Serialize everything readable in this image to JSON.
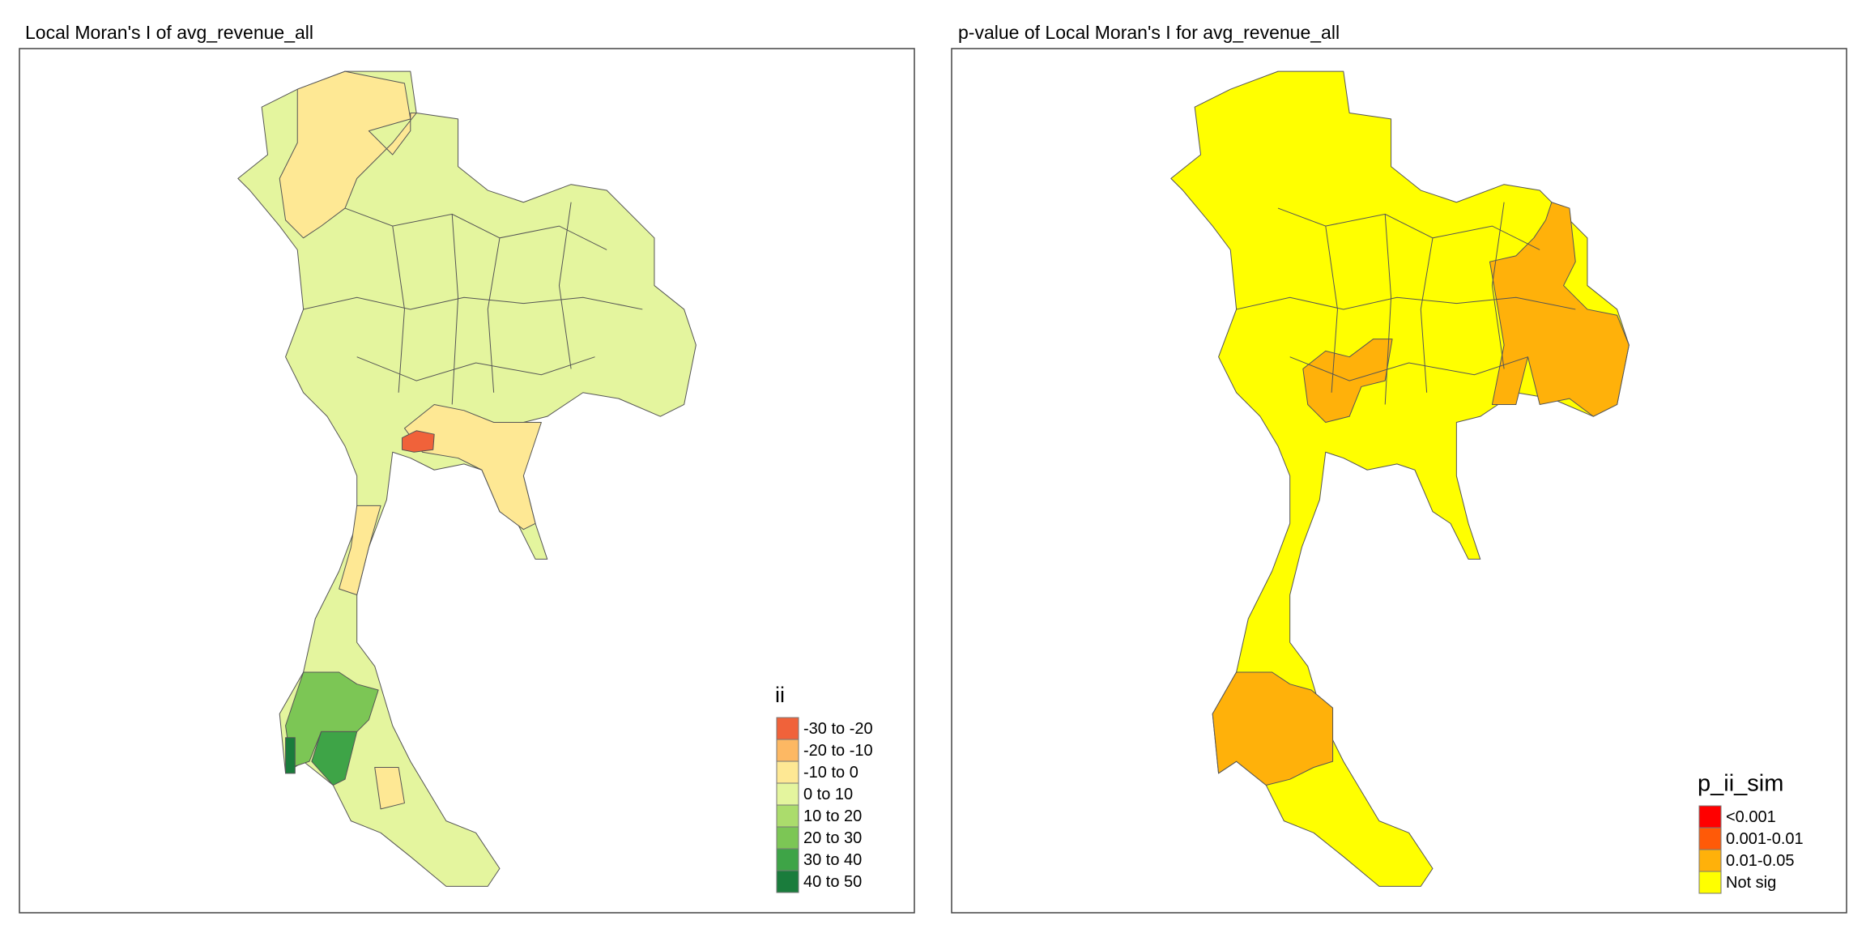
{
  "panels": [
    {
      "title": "Local Moran's I of avg_revenue_all",
      "legend": {
        "title": "ii",
        "items": [
          {
            "label": "-30 to -20",
            "color": "#f0623a"
          },
          {
            "label": "-20 to -10",
            "color": "#fdb863"
          },
          {
            "label": "-10 to 0",
            "color": "#fee894"
          },
          {
            "label": "0 to 10",
            "color": "#e4f59e"
          },
          {
            "label": "10 to 20",
            "color": "#abdc6c"
          },
          {
            "label": "20 to 30",
            "color": "#7cc655"
          },
          {
            "label": "30 to 40",
            "color": "#3ea447"
          },
          {
            "label": "40 to 50",
            "color": "#1a7c3c"
          }
        ]
      }
    },
    {
      "title": "p-value of Local Moran's I for avg_revenue_all",
      "legend": {
        "title": "p_ii_sim",
        "items": [
          {
            "label": "<0.001",
            "color": "#ff0000"
          },
          {
            "label": "0.001-0.01",
            "color": "#ff5a08"
          },
          {
            "label": "0.01-0.05",
            "color": "#ffb10a"
          },
          {
            "label": "Not sig",
            "color": "#ffff00"
          }
        ]
      }
    }
  ]
}
